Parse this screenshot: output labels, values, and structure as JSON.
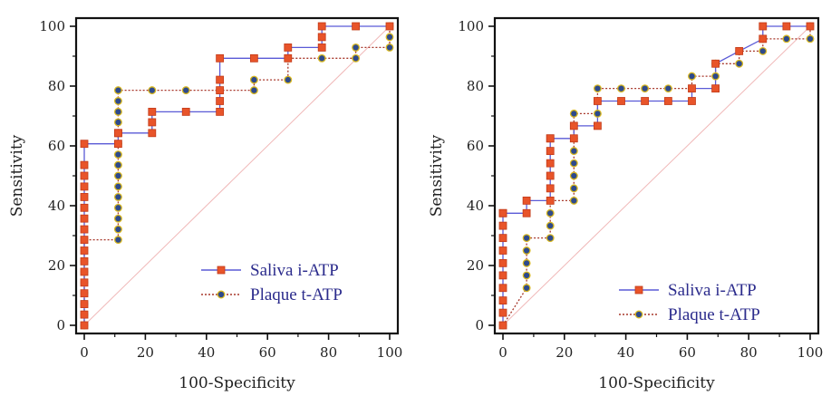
{
  "colors": {
    "saliva_line": "#5a5ad6",
    "saliva_marker_fill": "#e8542a",
    "saliva_marker_stroke": "#c23a18",
    "plaque_line": "#a8392c",
    "plaque_marker_fill": "#2e4a8c",
    "plaque_marker_stroke": "#d8b820",
    "diagonal": "#f0b8b8",
    "axis": "#111111"
  },
  "chart_data": [
    {
      "type": "line",
      "title": "",
      "xlabel": "100-Specificity",
      "ylabel": "Sensitivity",
      "xlim": [
        0,
        100
      ],
      "ylim": [
        0,
        100
      ],
      "xticks": [
        "0",
        "20",
        "40",
        "60",
        "80",
        "100"
      ],
      "yticks": [
        "0",
        "20",
        "40",
        "60",
        "80",
        "100"
      ],
      "grid": false,
      "legend_position": "bottom-right",
      "reference_line": "diagonal",
      "series": [
        {
          "name": "Saliva i-ATP",
          "marker": "square",
          "line_style": "solid",
          "x": [
            0,
            0,
            0,
            0,
            0,
            0,
            0,
            0,
            0,
            0,
            0,
            0,
            0,
            0,
            0,
            0,
            0,
            11.1,
            11.1,
            11.1,
            22.2,
            22.2,
            22.2,
            33.3,
            44.4,
            44.4,
            44.4,
            44.4,
            44.4,
            55.6,
            66.7,
            66.7,
            77.8,
            77.8,
            77.8,
            88.9,
            100
          ],
          "y": [
            0,
            3.6,
            7.1,
            10.7,
            14.3,
            17.9,
            21.4,
            25,
            28.6,
            32.1,
            35.7,
            39.3,
            42.9,
            46.4,
            50,
            53.6,
            60.7,
            60.7,
            64.3,
            64.3,
            64.3,
            67.9,
            71.4,
            71.4,
            71.4,
            75,
            78.6,
            82.1,
            89.3,
            89.3,
            89.3,
            92.9,
            92.9,
            96.4,
            100,
            100,
            100
          ]
        },
        {
          "name": "Plaque t-ATP",
          "marker": "circle",
          "line_style": "dotted",
          "x": [
            0,
            0,
            0,
            0,
            0,
            0,
            0,
            0,
            11.1,
            11.1,
            11.1,
            11.1,
            11.1,
            11.1,
            11.1,
            11.1,
            11.1,
            11.1,
            11.1,
            11.1,
            11.1,
            11.1,
            11.1,
            22.2,
            33.3,
            44.4,
            55.6,
            55.6,
            66.7,
            66.7,
            77.8,
            88.9,
            88.9,
            100,
            100,
            100
          ],
          "y": [
            0,
            3.6,
            7.1,
            10.7,
            14.3,
            17.9,
            21.4,
            28.6,
            28.6,
            32.1,
            35.7,
            39.3,
            42.9,
            46.4,
            50,
            53.6,
            57.1,
            60.7,
            64.3,
            67.9,
            71.4,
            75,
            78.6,
            78.6,
            78.6,
            78.6,
            78.6,
            82.1,
            82.1,
            89.3,
            89.3,
            89.3,
            92.9,
            92.9,
            96.4,
            100
          ]
        }
      ]
    },
    {
      "type": "line",
      "title": "",
      "xlabel": "100-Specificity",
      "ylabel": "Sensitivity",
      "xlim": [
        0,
        100
      ],
      "ylim": [
        0,
        100
      ],
      "xticks": [
        "0",
        "20",
        "40",
        "60",
        "80",
        "100"
      ],
      "yticks": [
        "0",
        "20",
        "40",
        "60",
        "80",
        "100"
      ],
      "grid": false,
      "legend_position": "bottom-right",
      "reference_line": "diagonal",
      "series": [
        {
          "name": "Saliva i-ATP",
          "marker": "square",
          "line_style": "solid",
          "x": [
            0,
            0,
            0,
            0,
            0,
            0,
            0,
            0,
            0,
            0,
            0,
            7.7,
            7.7,
            15.4,
            15.4,
            15.4,
            15.4,
            15.4,
            15.4,
            15.4,
            23.1,
            23.1,
            30.8,
            30.8,
            38.5,
            46.2,
            53.8,
            61.5,
            61.5,
            69.2,
            69.2,
            76.9,
            84.6,
            84.6,
            92.3,
            100
          ],
          "y": [
            0,
            4.2,
            8.3,
            12.5,
            16.7,
            20.8,
            25,
            29.2,
            33.3,
            37.5,
            37.5,
            37.5,
            41.7,
            41.7,
            45.8,
            50,
            54.2,
            58.3,
            62.5,
            62.5,
            62.5,
            66.7,
            66.7,
            75,
            75,
            75,
            75,
            75,
            79.2,
            79.2,
            87.5,
            91.7,
            95.8,
            100,
            100,
            100
          ]
        },
        {
          "name": "Plaque t-ATP",
          "marker": "circle",
          "line_style": "dotted",
          "x": [
            0,
            7.7,
            7.7,
            7.7,
            7.7,
            7.7,
            15.4,
            15.4,
            15.4,
            15.4,
            23.1,
            23.1,
            23.1,
            23.1,
            23.1,
            23.1,
            23.1,
            30.8,
            30.8,
            38.5,
            46.2,
            53.8,
            61.5,
            61.5,
            69.2,
            69.2,
            76.9,
            76.9,
            84.6,
            84.6,
            92.3,
            100,
            100
          ],
          "y": [
            0,
            12.5,
            16.7,
            20.8,
            25,
            29.2,
            29.2,
            33.3,
            37.5,
            41.7,
            41.7,
            45.8,
            50,
            54.2,
            58.3,
            62.5,
            70.8,
            70.8,
            79.2,
            79.2,
            79.2,
            79.2,
            79.2,
            83.3,
            83.3,
            87.5,
            87.5,
            91.7,
            91.7,
            95.8,
            95.8,
            95.8,
            100
          ]
        }
      ]
    }
  ]
}
